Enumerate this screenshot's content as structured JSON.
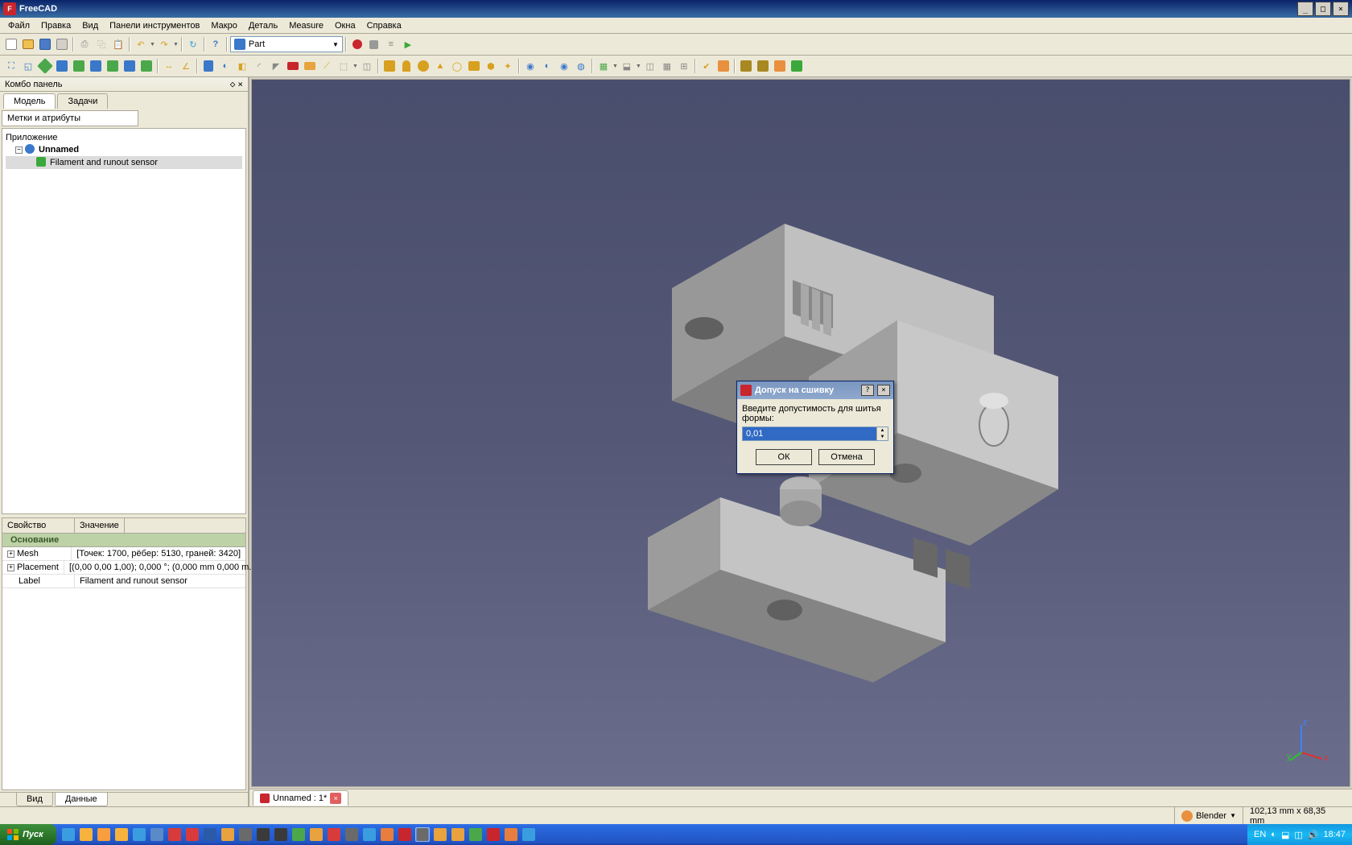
{
  "app": {
    "title": "FreeCAD"
  },
  "window_buttons": {
    "minimize": "_",
    "maximize": "□",
    "close": "×"
  },
  "menubar": [
    "Файл",
    "Правка",
    "Вид",
    "Панели инструментов",
    "Макро",
    "Деталь",
    "Measure",
    "Окна",
    "Справка"
  ],
  "toolbar1": {
    "workbench": {
      "label": "Part",
      "icon_color": "#3a78c9"
    },
    "record_color": "#c8252d"
  },
  "combo_panel": {
    "title": "Комбо панель",
    "tabs": [
      "Модель",
      "Задачи"
    ],
    "section": "Метки и атрибуты",
    "tree": {
      "root": "Приложение",
      "doc": "Unnamed",
      "item": "Filament and runout sensor"
    },
    "props_header": {
      "k": "Свойство",
      "v": "Значение"
    },
    "props_group": "Основание",
    "props": [
      {
        "k": "Mesh",
        "v": "[Точек: 1700, рёбер: 5130, граней: 3420]"
      },
      {
        "k": "Placement",
        "v": "[(0,00 0,00 1,00); 0,000 °; (0,000 mm  0,000 m..."
      },
      {
        "k": "Label",
        "v": "Filament and runout sensor"
      }
    ],
    "bottom_tabs": [
      "Вид",
      "Данные"
    ]
  },
  "doc_tab": "Unnamed : 1*",
  "statusbar": {
    "style": "Blender",
    "dims": "102,13 mm x 68,35 mm"
  },
  "dialog": {
    "title": "Допуск на сшивку",
    "label": "Введите допустимость для шитья формы:",
    "value": "0,01",
    "ok": "ОК",
    "cancel": "Отмена"
  },
  "taskbar": {
    "start": "Пуск",
    "lang": "EN",
    "time": "18:47"
  },
  "colors": {
    "viewport_top": "#4a4e6d",
    "viewport_bottom": "#6a6e8c",
    "axis_x": "#e03030",
    "axis_y": "#30c030",
    "axis_z": "#4080ff",
    "model_fill": "#a8a8a8",
    "model_light": "#d0d0d0",
    "model_dark": "#787878"
  },
  "task_icons": [
    {
      "c": "#3a9de0"
    },
    {
      "c": "#f7b23e"
    },
    {
      "c": "#f79e3e"
    },
    {
      "c": "#f7b23e"
    },
    {
      "c": "#3a9de0"
    },
    {
      "c": "#5a8ac8"
    },
    {
      "c": "#d83b3b"
    },
    {
      "c": "#d83b3b"
    },
    {
      "c": "#2a5aa8"
    },
    {
      "c": "#e8a23e"
    },
    {
      "c": "#6a6a6a"
    },
    {
      "c": "#3a3a3a"
    },
    {
      "c": "#3a3a3a"
    },
    {
      "c": "#4aa84a"
    },
    {
      "c": "#e8a23e"
    },
    {
      "c": "#d83b3b"
    },
    {
      "c": "#6a6a6a"
    },
    {
      "c": "#3a9de0"
    },
    {
      "c": "#e87e3e"
    },
    {
      "c": "#c8252d"
    },
    {
      "c": "#6a6a6a"
    },
    {
      "c": "#e8a23e"
    },
    {
      "c": "#e8a23e"
    },
    {
      "c": "#4aa84a"
    },
    {
      "c": "#c8252d"
    },
    {
      "c": "#e87e3e"
    },
    {
      "c": "#3a9de0"
    }
  ]
}
